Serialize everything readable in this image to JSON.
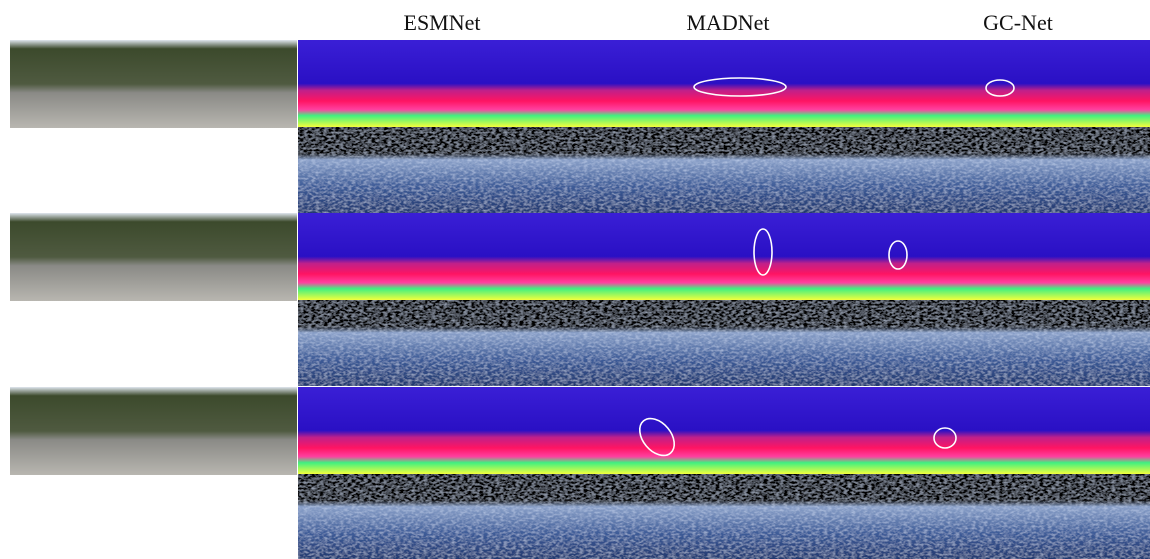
{
  "columns": [
    "ESMNet",
    "MADNet",
    "GC-Net"
  ]
}
